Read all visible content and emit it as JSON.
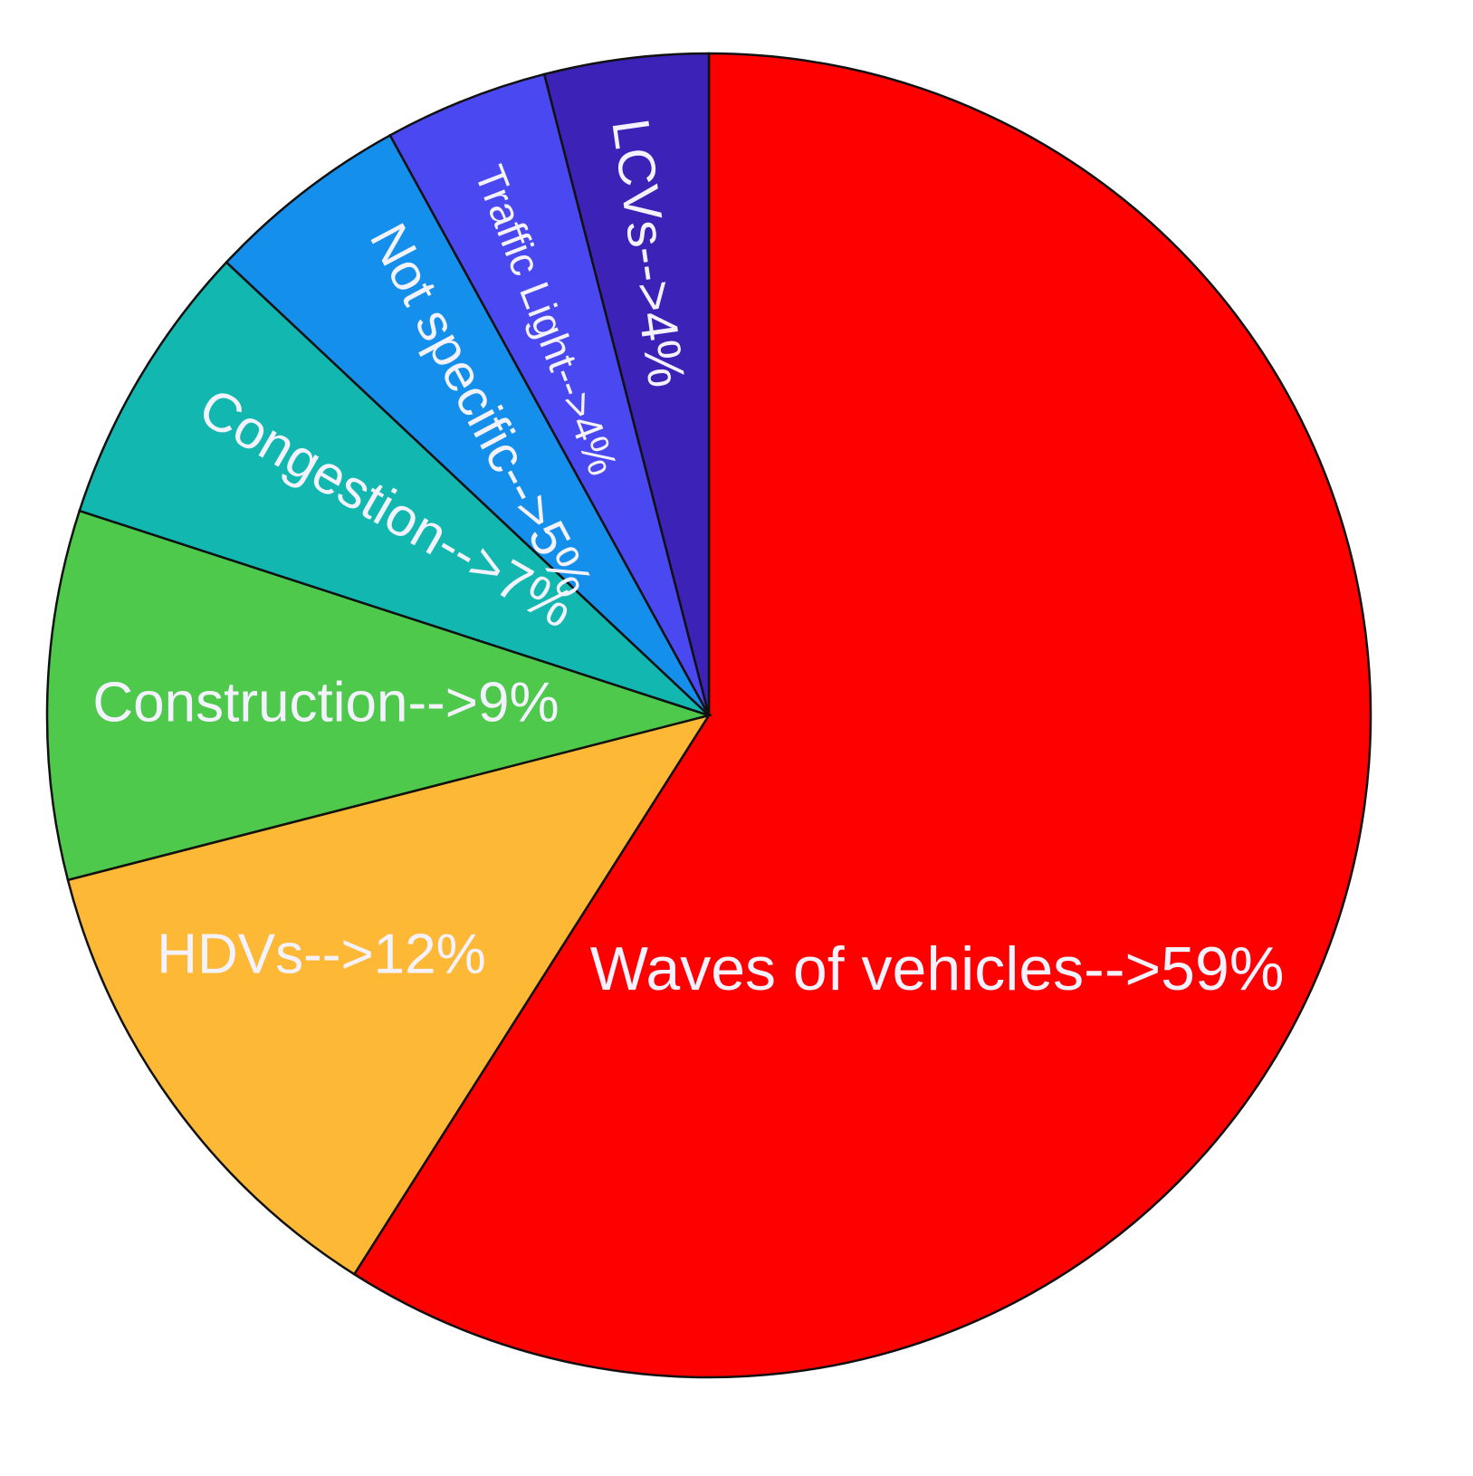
{
  "chart_data": {
    "type": "pie",
    "start": "12 o'clock, clockwise",
    "slices": [
      {
        "label": "Waves of vehicles-->59%",
        "category": "Waves of vehicles",
        "value": 59,
        "color": "#ff0000"
      },
      {
        "label": "HDVs-->12%",
        "category": "HDVs",
        "value": 12,
        "color": "#fdb835"
      },
      {
        "label": "Construction-->9%",
        "category": "Construction",
        "value": 9,
        "color": "#4ec94c"
      },
      {
        "label": "Congestion-->7%",
        "category": "Congestion",
        "value": 7,
        "color": "#12b8b0"
      },
      {
        "label": "Not specific-->5%",
        "category": "Not specific",
        "value": 5,
        "color": "#1490ec"
      },
      {
        "label": "Traffic Light-->4%",
        "category": "Traffic Light",
        "value": 4,
        "color": "#4a48f0"
      },
      {
        "label": "LCVs-->4%",
        "category": "LCVs",
        "value": 4,
        "color": "#3d22b8"
      }
    ]
  }
}
